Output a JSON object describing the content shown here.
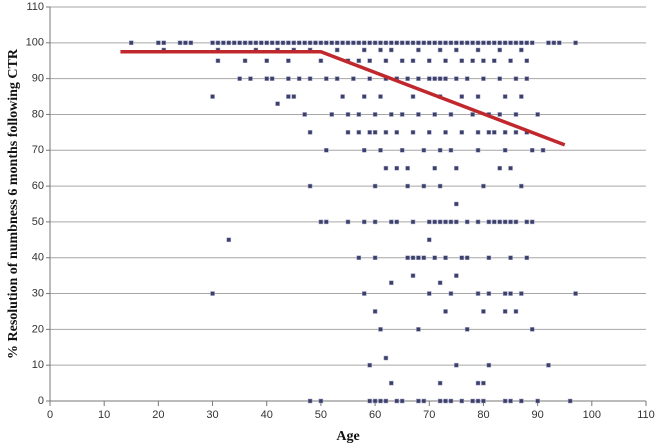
{
  "chart_data": {
    "type": "scatter",
    "xlabel": "Age",
    "ylabel": "% Resolution of numbness 6 months following CTR",
    "xlim": [
      0,
      110
    ],
    "xticks": [
      0,
      10,
      20,
      30,
      40,
      50,
      60,
      70,
      80,
      90,
      100,
      110
    ],
    "ylim": [
      0,
      110
    ],
    "yticks": [
      0,
      10,
      20,
      30,
      40,
      50,
      60,
      70,
      80,
      90,
      100,
      110
    ],
    "grid": true,
    "series": [
      {
        "type": "scatter",
        "color": "#3c3f6b",
        "x": [
          15,
          20,
          21,
          24,
          25,
          26,
          30,
          31,
          32,
          33,
          34,
          35,
          36,
          37,
          38,
          39,
          40,
          41,
          42,
          43,
          44,
          45,
          46,
          47,
          48,
          49,
          50,
          51,
          52,
          53,
          54,
          55,
          56,
          57,
          58,
          59,
          60,
          61,
          62,
          63,
          64,
          65,
          66,
          67,
          68,
          69,
          70,
          71,
          72,
          73,
          74,
          75,
          76,
          77,
          78,
          79,
          80,
          81,
          82,
          83,
          84,
          85,
          86,
          87,
          88,
          89,
          92,
          93,
          94,
          97,
          21,
          31,
          38,
          42,
          45,
          48,
          53,
          58,
          61,
          63,
          68,
          72,
          75,
          79,
          83,
          87,
          31,
          36,
          40,
          44,
          50,
          55,
          57,
          59,
          62,
          65,
          67,
          70,
          73,
          76,
          78,
          80,
          82,
          85,
          88,
          35,
          37,
          40,
          41,
          44,
          46,
          48,
          51,
          53,
          56,
          59,
          62,
          64,
          66,
          68,
          70,
          71,
          72,
          73,
          75,
          77,
          80,
          83,
          86,
          88,
          30,
          44,
          45,
          54,
          58,
          61,
          67,
          72,
          76,
          79,
          84,
          87,
          42,
          47,
          52,
          55,
          57,
          60,
          63,
          65,
          68,
          71,
          74,
          78,
          81,
          83,
          86,
          90,
          48,
          55,
          57,
          59,
          60,
          62,
          64,
          67,
          70,
          73,
          76,
          79,
          81,
          82,
          84,
          86,
          88,
          51,
          58,
          61,
          65,
          69,
          72,
          74,
          79,
          84,
          89,
          91,
          62,
          64,
          66,
          71,
          75,
          83,
          85,
          48,
          60,
          66,
          69,
          72,
          80,
          87,
          75,
          50,
          51,
          55,
          58,
          60,
          63,
          64,
          67,
          70,
          71,
          72,
          73,
          74,
          75,
          77,
          79,
          81,
          82,
          83,
          84,
          85,
          86,
          88,
          89,
          33,
          70,
          57,
          60,
          66,
          67,
          68,
          69,
          71,
          73,
          76,
          77,
          81,
          85,
          88,
          67,
          75,
          63,
          72,
          30,
          58,
          70,
          74,
          79,
          81,
          84,
          85,
          87,
          97,
          60,
          73,
          80,
          84,
          86,
          61,
          68,
          77,
          89,
          62,
          59,
          75,
          81,
          92,
          63,
          72,
          79,
          80,
          48,
          50,
          59,
          60,
          61,
          62,
          64,
          65,
          68,
          69,
          72,
          73,
          74,
          76,
          78,
          79,
          80,
          84,
          85,
          87,
          90,
          96
        ],
        "values": [
          100,
          100,
          100,
          100,
          100,
          100,
          100,
          100,
          100,
          100,
          100,
          100,
          100,
          100,
          100,
          100,
          100,
          100,
          100,
          100,
          100,
          100,
          100,
          100,
          100,
          100,
          100,
          100,
          100,
          100,
          100,
          100,
          100,
          100,
          100,
          100,
          100,
          100,
          100,
          100,
          100,
          100,
          100,
          100,
          100,
          100,
          100,
          100,
          100,
          100,
          100,
          100,
          100,
          100,
          100,
          100,
          100,
          100,
          100,
          100,
          100,
          100,
          100,
          100,
          100,
          100,
          100,
          100,
          100,
          100,
          98,
          98,
          98,
          98,
          98,
          98,
          98,
          98,
          98,
          98,
          98,
          98,
          98,
          98,
          98,
          98,
          95,
          95,
          95,
          95,
          95,
          95,
          95,
          95,
          95,
          95,
          95,
          95,
          95,
          95,
          95,
          95,
          95,
          95,
          95,
          90,
          90,
          90,
          90,
          90,
          90,
          90,
          90,
          90,
          90,
          90,
          90,
          90,
          90,
          90,
          90,
          90,
          90,
          90,
          90,
          90,
          90,
          90,
          90,
          90,
          85,
          85,
          85,
          85,
          85,
          85,
          85,
          85,
          85,
          85,
          85,
          85,
          83,
          80,
          80,
          80,
          80,
          80,
          80,
          80,
          80,
          80,
          80,
          80,
          80,
          80,
          80,
          80,
          75,
          75,
          75,
          75,
          75,
          75,
          75,
          75,
          75,
          75,
          75,
          75,
          75,
          75,
          75,
          75,
          75,
          70,
          70,
          70,
          70,
          70,
          70,
          70,
          70,
          70,
          70,
          70,
          65,
          65,
          65,
          65,
          65,
          65,
          65,
          60,
          60,
          60,
          60,
          60,
          60,
          60,
          55,
          50,
          50,
          50,
          50,
          50,
          50,
          50,
          50,
          50,
          50,
          50,
          50,
          50,
          50,
          50,
          50,
          50,
          50,
          50,
          50,
          50,
          50,
          50,
          50,
          45,
          45,
          40,
          40,
          40,
          40,
          40,
          40,
          40,
          40,
          40,
          40,
          40,
          40,
          40,
          35,
          35,
          33,
          33,
          30,
          30,
          30,
          30,
          30,
          30,
          30,
          30,
          30,
          30,
          25,
          25,
          25,
          25,
          25,
          20,
          20,
          20,
          20,
          12,
          10,
          10,
          10,
          10,
          5,
          5,
          5,
          5,
          0,
          0,
          0,
          0,
          0,
          0,
          0,
          0,
          0,
          0,
          0,
          0,
          0,
          0,
          0,
          0,
          0,
          0,
          0,
          0,
          0,
          0
        ]
      },
      {
        "type": "line",
        "color": "#c0282d",
        "x": [
          13,
          50,
          95
        ],
        "values": [
          97.5,
          97.5,
          71.5
        ]
      }
    ]
  }
}
